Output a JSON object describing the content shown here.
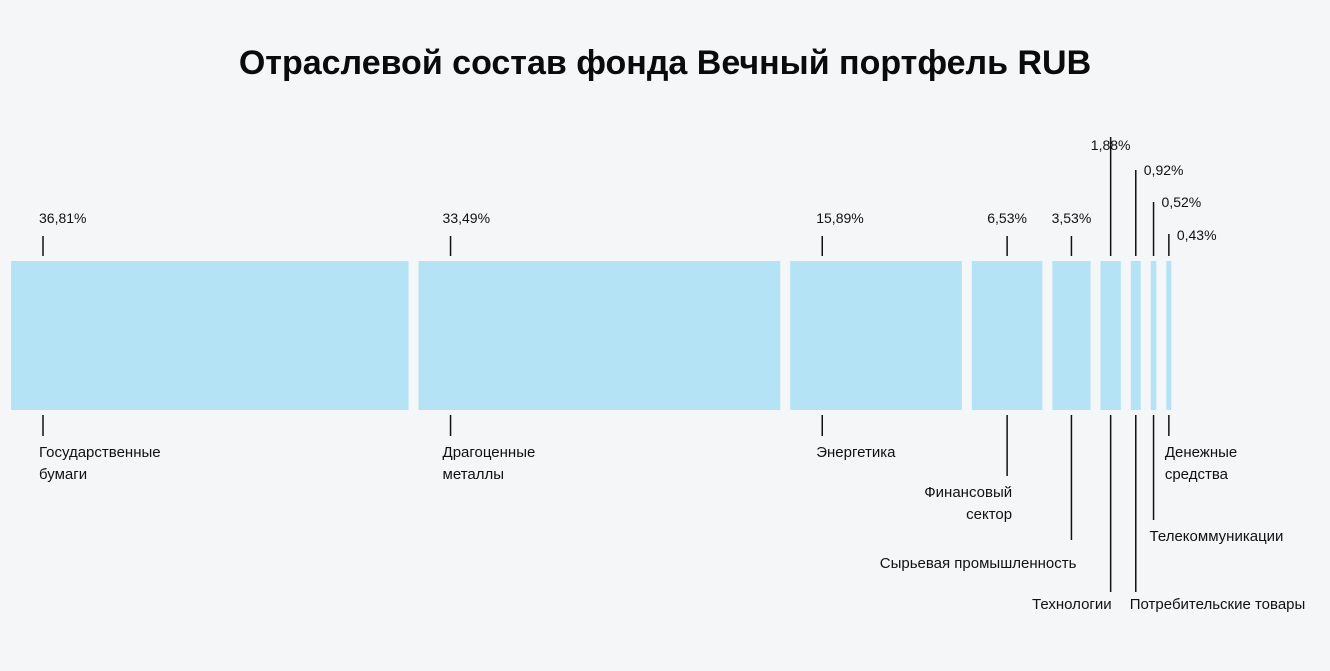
{
  "chart_data": {
    "type": "bar",
    "orientation": "horizontal-stacked",
    "title": "Отраслевой состав фонда Вечный портфель RUB",
    "unit": "%",
    "bar_color": "#b3e3f4",
    "categories": [
      "Государственные бумаги",
      "Драгоценные металлы",
      "Энергетика",
      "Финансовый сектор",
      "Сырьевая промышленность",
      "Технологии",
      "Потребительские товары",
      "Телекоммуникации",
      "Денежные средства"
    ],
    "values": [
      36.81,
      33.49,
      15.89,
      6.53,
      3.53,
      1.88,
      0.92,
      0.52,
      0.43
    ],
    "value_labels": [
      "36,81%",
      "33,49%",
      "15,89%",
      "6,53%",
      "3,53%",
      "1,88%",
      "0,92%",
      "0,52%",
      "0,43%"
    ],
    "category_label_lines": [
      [
        "Государственные",
        "бумаги"
      ],
      [
        "Драгоценные",
        "металлы"
      ],
      [
        "Энергетика"
      ],
      [
        "Финансовый",
        "сектор"
      ],
      [
        "Сырьевая промышленность"
      ],
      [
        "Технологии"
      ],
      [
        "Потребительские товары"
      ],
      [
        "Телекоммуникации"
      ],
      [
        "Денежные",
        "средства"
      ]
    ]
  }
}
